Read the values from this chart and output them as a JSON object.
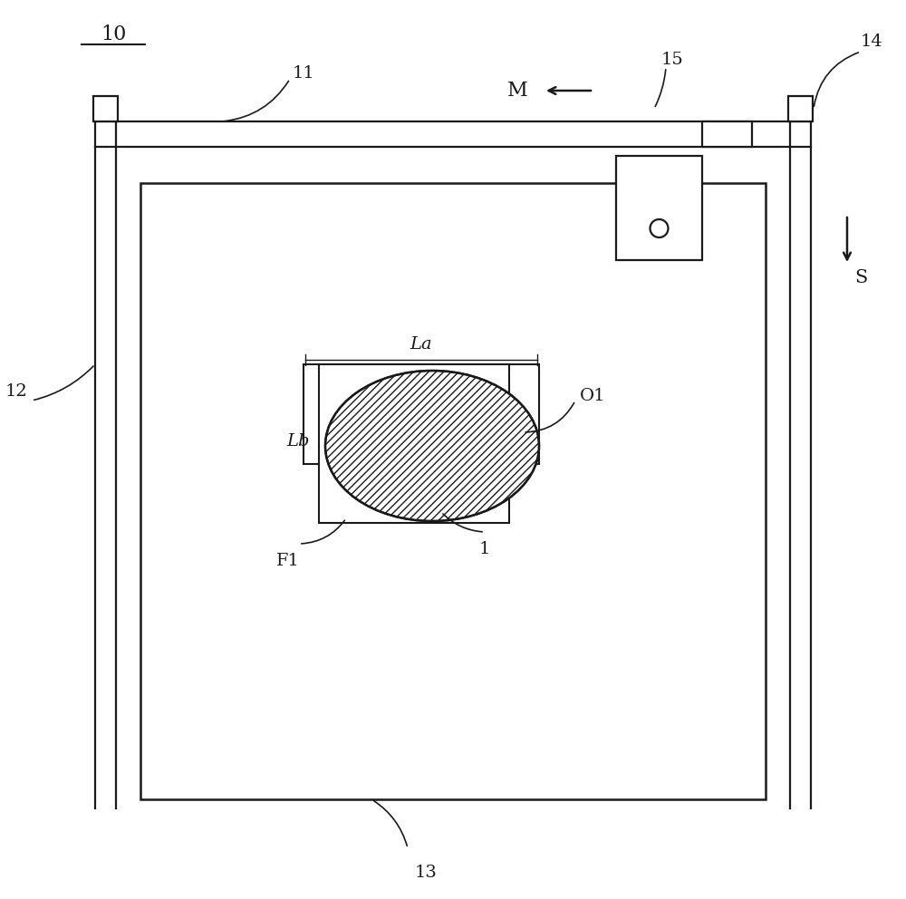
{
  "bg_color": "#ffffff",
  "line_color": "#1a1a1a",
  "lw": 1.6,
  "fig_width": 10.0,
  "fig_height": 9.92,
  "label_10": "10",
  "label_11": "11",
  "label_12": "12",
  "label_13": "13",
  "label_14": "14",
  "label_15": "15",
  "label_M": "M",
  "label_S": "S",
  "label_La": "La",
  "label_Lb": "Lb",
  "label_O1": "O1",
  "label_F1": "F1",
  "label_1": "1",
  "font_size": 14
}
